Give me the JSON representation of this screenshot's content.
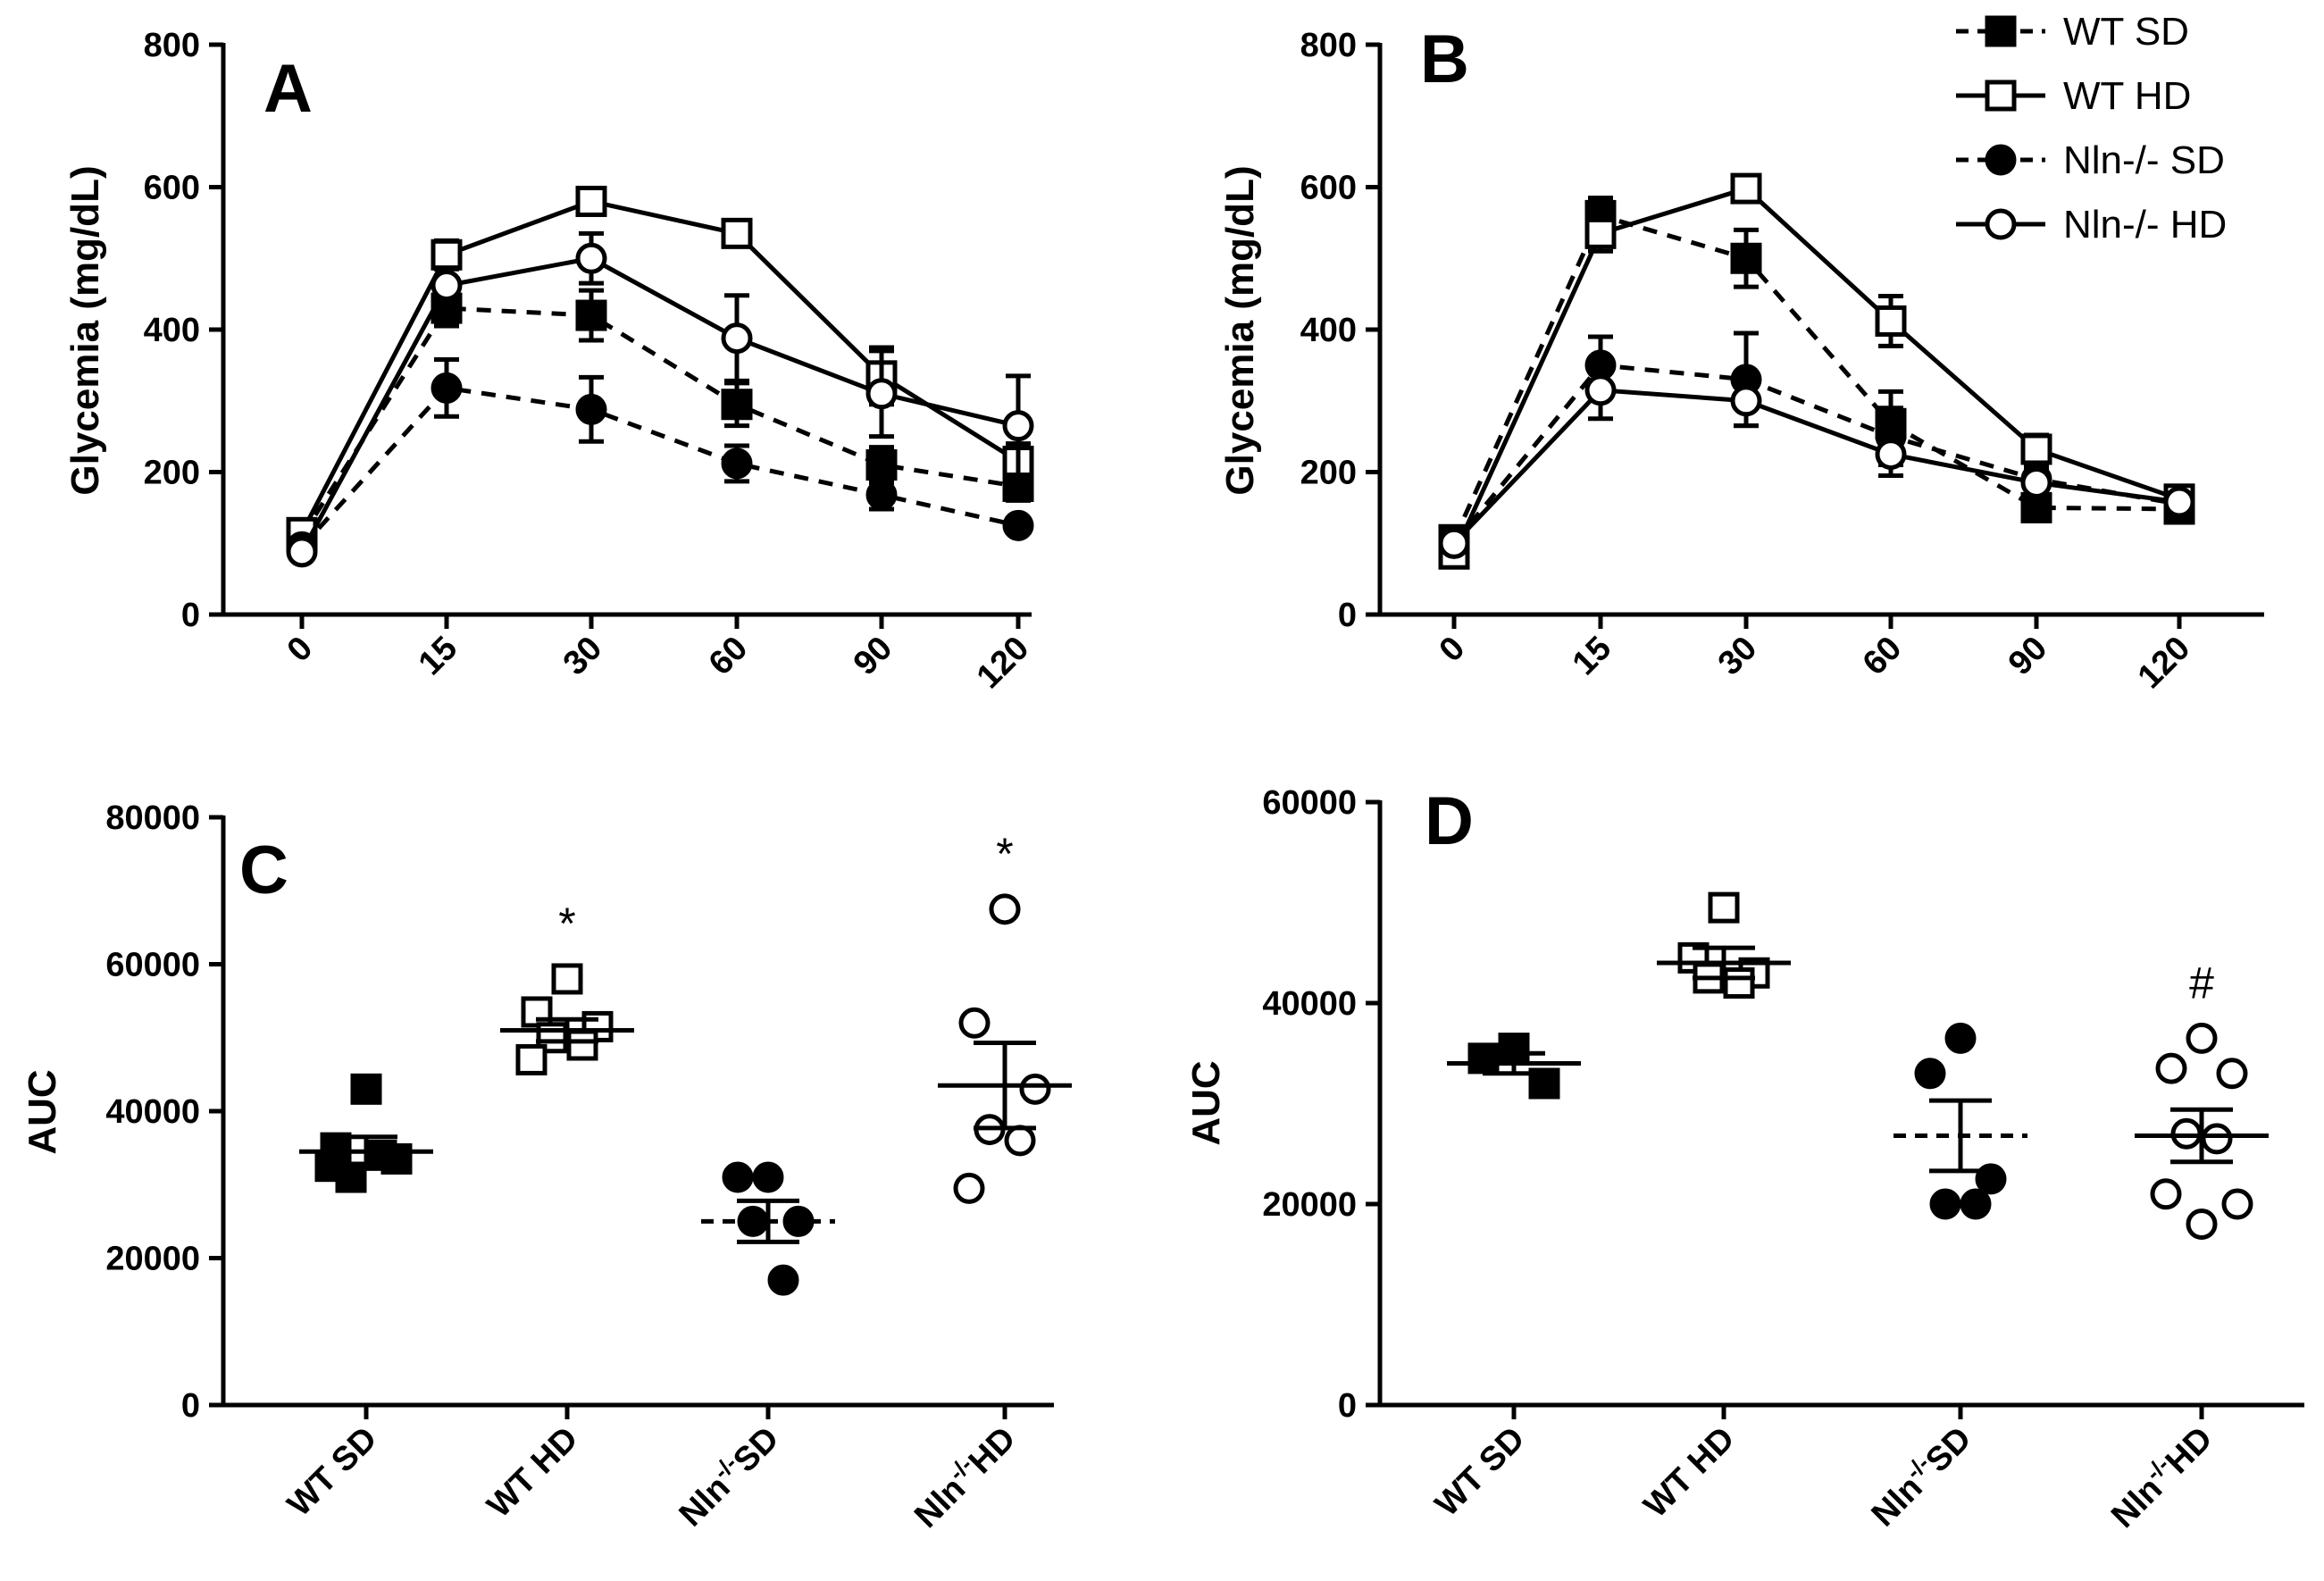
{
  "chart_data": [
    {
      "panel": "A",
      "type": "line",
      "title": "",
      "xlabel": "",
      "ylabel": "Glycemia (mg/dL)",
      "categories": [
        "0",
        "15",
        "30",
        "60",
        "90",
        "120"
      ],
      "ylim": [
        0,
        800
      ],
      "yticks": [
        "0",
        "200",
        "400",
        "600",
        "800"
      ],
      "series": [
        {
          "name": "WT SD",
          "values": [
            110,
            430,
            420,
            295,
            210,
            180
          ],
          "errors": [
            10,
            25,
            35,
            30,
            25,
            20
          ]
        },
        {
          "name": "WT HD",
          "values": [
            115,
            505,
            580,
            535,
            335,
            215
          ],
          "errors": [
            10,
            20,
            15,
            15,
            40,
            25
          ]
        },
        {
          "name": "Nln-/- SD",
          "values": [
            95,
            318,
            288,
            212,
            168,
            125
          ],
          "errors": [
            10,
            40,
            45,
            25,
            20,
            10
          ]
        },
        {
          "name": "Nln-/- HD",
          "values": [
            88,
            462,
            500,
            388,
            310,
            265
          ],
          "errors": [
            10,
            25,
            35,
            60,
            60,
            70
          ]
        }
      ]
    },
    {
      "panel": "B",
      "type": "line",
      "title": "",
      "xlabel": "",
      "ylabel": "Glycemia (mg/dL)",
      "categories": [
        "0",
        "15",
        "30",
        "60",
        "90",
        "120"
      ],
      "ylim": [
        0,
        800
      ],
      "yticks": [
        "0",
        "200",
        "400",
        "600",
        "800"
      ],
      "series": [
        {
          "name": "WT SD",
          "values": [
            105,
            560,
            500,
            268,
            150,
            148
          ],
          "errors": [
            10,
            25,
            40,
            45,
            15,
            10
          ]
        },
        {
          "name": "WT HD",
          "values": [
            85,
            535,
            598,
            412,
            232,
            162
          ],
          "errors": [
            10,
            25,
            15,
            35,
            20,
            10
          ]
        },
        {
          "name": "Nln-/- SD",
          "values": [
            100,
            350,
            330,
            250,
            190,
            155
          ],
          "errors": [
            10,
            40,
            65,
            40,
            20,
            10
          ]
        },
        {
          "name": "Nln-/- HD",
          "values": [
            100,
            315,
            300,
            225,
            185,
            158
          ],
          "errors": [
            10,
            40,
            35,
            30,
            20,
            10
          ]
        }
      ]
    },
    {
      "panel": "C",
      "type": "scatter",
      "title": "",
      "xlabel": "",
      "ylabel": "AUC",
      "categories": [
        "WT SD",
        "WT HD",
        "Nln-/-SD",
        "Nln-/-HD"
      ],
      "ylim": [
        0,
        80000
      ],
      "yticks": [
        "0",
        "20000",
        "40000",
        "60000",
        "80000"
      ],
      "groups": [
        {
          "name": "WT SD",
          "points": [
            43000,
            35000,
            33500,
            31000,
            34000,
            32500
          ],
          "mean": 34500,
          "sem": 2000,
          "annotation": ""
        },
        {
          "name": "WT HD",
          "points": [
            58000,
            53500,
            51500,
            50000,
            49000,
            47000
          ],
          "mean": 51000,
          "sem": 1500,
          "annotation": "*"
        },
        {
          "name": "Nln-/-SD",
          "points": [
            31000,
            31000,
            25000,
            25000,
            17000
          ],
          "mean": 25000,
          "sem": 2800,
          "annotation": ""
        },
        {
          "name": "Nln-/-HD",
          "points": [
            67500,
            52000,
            43000,
            37500,
            36000,
            29500
          ],
          "mean": 43500,
          "sem": 5800,
          "annotation": "*"
        }
      ]
    },
    {
      "panel": "D",
      "type": "scatter",
      "title": "",
      "xlabel": "",
      "ylabel": "AUC",
      "categories": [
        "WT SD",
        "WT HD",
        "Nln-/-SD",
        "Nln-/-HD"
      ],
      "ylim": [
        0,
        60000
      ],
      "yticks": [
        "0",
        "20000",
        "40000",
        "60000"
      ],
      "groups": [
        {
          "name": "WT SD",
          "points": [
            35500,
            34500,
            32000
          ],
          "mean": 34000,
          "sem": 1000,
          "annotation": ""
        },
        {
          "name": "WT HD",
          "points": [
            49500,
            44500,
            43000,
            42500,
            42000
          ],
          "mean": 44000,
          "sem": 1500,
          "annotation": ""
        },
        {
          "name": "Nln-/-SD",
          "points": [
            36500,
            33000,
            22500,
            20000,
            20000
          ],
          "mean": 26800,
          "sem": 3500,
          "annotation": ""
        },
        {
          "name": "Nln-/-HD",
          "points": [
            36500,
            33500,
            33000,
            27000,
            26500,
            21000,
            20000,
            18000
          ],
          "mean": 26800,
          "sem": 2600,
          "annotation": "#"
        }
      ]
    }
  ],
  "legend": {
    "position": "top-right",
    "entries": [
      {
        "label": "WT SD",
        "marker": "filled-square",
        "dashed": true
      },
      {
        "label": "WT HD",
        "marker": "open-square",
        "dashed": false
      },
      {
        "label": "Nln-/- SD",
        "marker": "filled-circle",
        "dashed": true
      },
      {
        "label": "Nln-/- HD",
        "marker": "open-circle",
        "dashed": false
      }
    ]
  },
  "colors": {
    "ink": "#000000",
    "background": "#ffffff"
  }
}
